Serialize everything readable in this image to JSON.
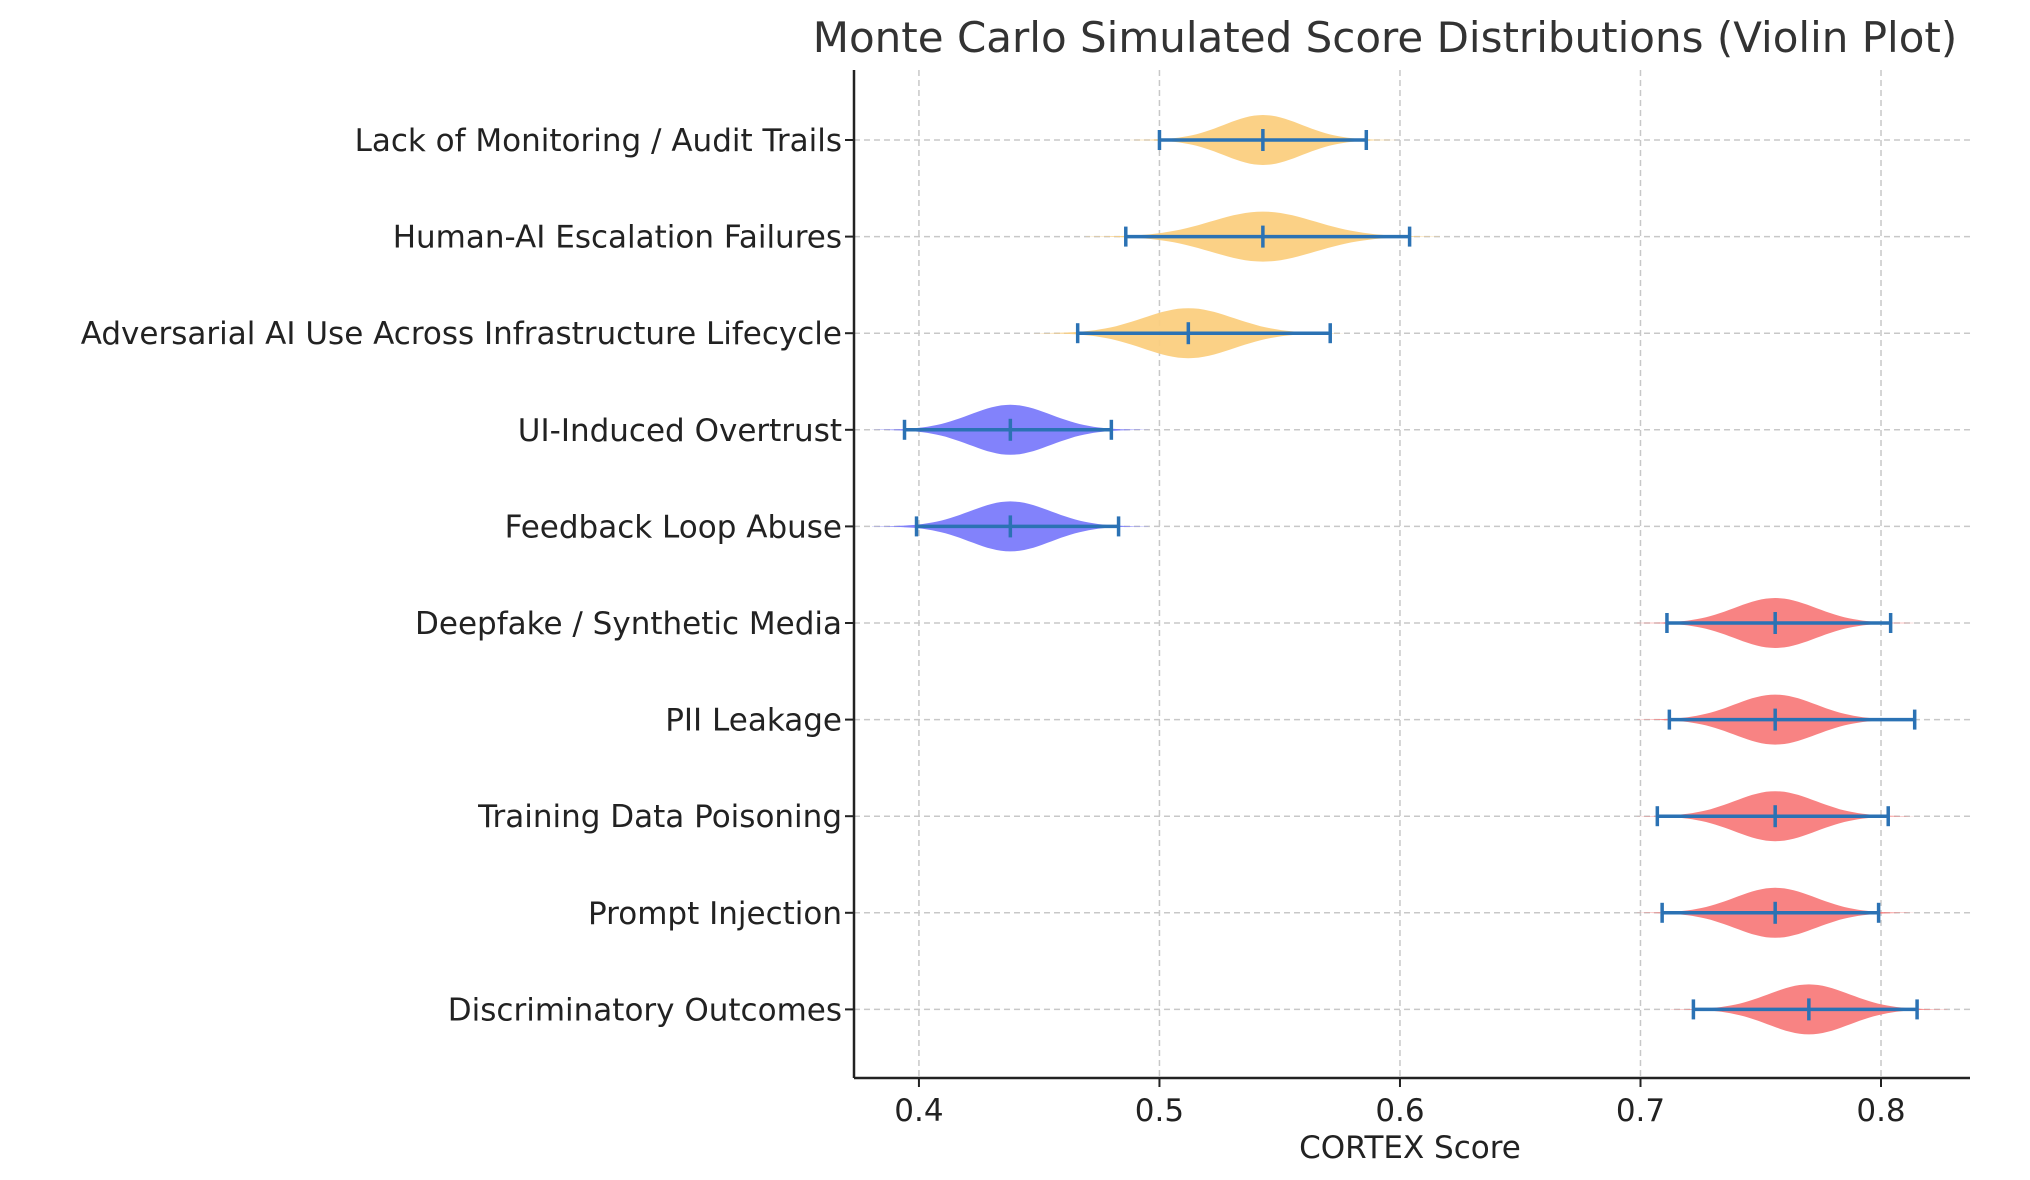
{
  "chart_data": {
    "type": "violin",
    "orientation": "horizontal",
    "title": "Monte Carlo Simulated Score Distributions (Violin Plot)",
    "xlabel": "CORTEX Score",
    "ylabel": "",
    "xlim": [
      0.373,
      0.837
    ],
    "xticks": [
      "0.4",
      "0.5",
      "0.6",
      "0.7",
      "0.8"
    ],
    "xtick_values": [
      0.4,
      0.5,
      0.6,
      0.7,
      0.8
    ],
    "grid": true,
    "colors": {
      "red": "#f87c7c",
      "blue": "#7b7bfb",
      "amber": "#fbcf80",
      "range_line": "#2b72b4",
      "grid": "#c8c8c8",
      "axis": "#222222"
    },
    "categories": [
      "Lack of Monitoring / Audit Trails",
      "Human-AI Escalation Failures",
      "Adversarial AI Use Across Infrastructure Lifecycle",
      "UI-Induced Overtrust",
      "Feedback Loop Abuse",
      "Deepfake / Synthetic Media",
      "PII Leakage",
      "Training Data Poisoning",
      "Prompt Injection",
      "Discriminatory Outcomes"
    ],
    "series": [
      {
        "label": "Lack of Monitoring / Audit Trails",
        "min": 0.5,
        "mean": 0.543,
        "max": 0.586,
        "color": "amber",
        "spread": 0.024
      },
      {
        "label": "Human-AI Escalation Failures",
        "min": 0.486,
        "mean": 0.543,
        "max": 0.604,
        "color": "amber",
        "spread": 0.032
      },
      {
        "label": "Adversarial AI Use Across Infrastructure Lifecycle",
        "min": 0.466,
        "mean": 0.512,
        "max": 0.571,
        "color": "amber",
        "spread": 0.028
      },
      {
        "label": "UI-Induced Overtrust",
        "min": 0.394,
        "mean": 0.438,
        "max": 0.48,
        "color": "blue",
        "spread": 0.025
      },
      {
        "label": "Feedback Loop Abuse",
        "min": 0.399,
        "mean": 0.438,
        "max": 0.483,
        "color": "blue",
        "spread": 0.025
      },
      {
        "label": "Deepfake / Synthetic Media",
        "min": 0.711,
        "mean": 0.756,
        "max": 0.804,
        "color": "red",
        "spread": 0.025
      },
      {
        "label": "PII Leakage",
        "min": 0.712,
        "mean": 0.756,
        "max": 0.814,
        "color": "red",
        "spread": 0.025
      },
      {
        "label": "Training Data Poisoning",
        "min": 0.707,
        "mean": 0.756,
        "max": 0.803,
        "color": "red",
        "spread": 0.025
      },
      {
        "label": "Prompt Injection",
        "min": 0.709,
        "mean": 0.756,
        "max": 0.799,
        "color": "red",
        "spread": 0.025
      },
      {
        "label": "Discriminatory Outcomes",
        "min": 0.722,
        "mean": 0.77,
        "max": 0.815,
        "color": "red",
        "spread": 0.025
      }
    ]
  }
}
